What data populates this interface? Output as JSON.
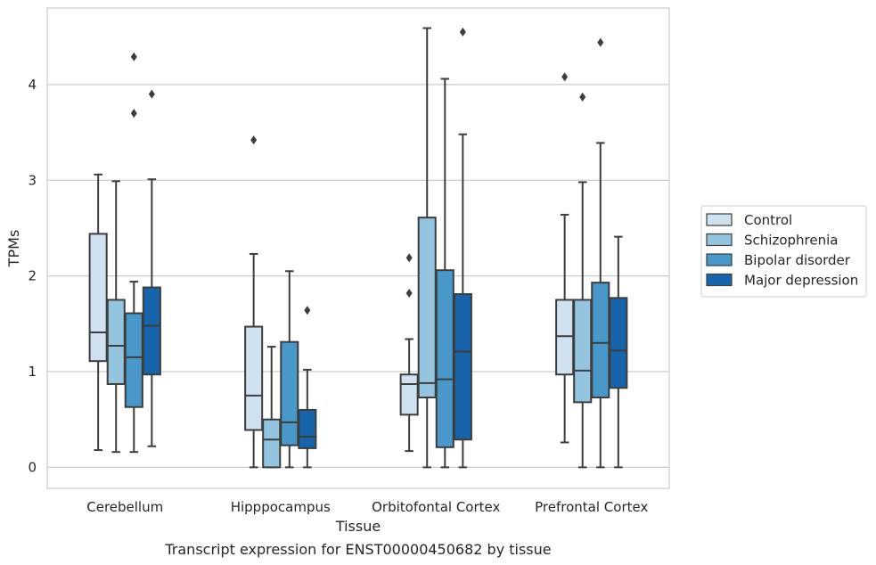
{
  "chart_data": {
    "type": "box",
    "title": "",
    "caption": "Transcript expression for ENST00000450682 by tissue",
    "xlabel": "Tissue",
    "ylabel": "TPMs",
    "ylim": [
      -0.22,
      4.8
    ],
    "yticks": [
      0,
      1,
      2,
      3,
      4
    ],
    "grid": true,
    "legend_position": "right",
    "categories": [
      "Cerebellum",
      "Hipppocampus",
      "Orbitofontal Cortex",
      "Prefrontal Cortex"
    ],
    "series": [
      {
        "name": "Control",
        "color": "#d0e1f2",
        "boxes": [
          {
            "whislo": 0.18,
            "q1": 1.11,
            "med": 1.41,
            "q3": 2.44,
            "whishi": 3.06,
            "fliers": []
          },
          {
            "whislo": 0.0,
            "q1": 0.39,
            "med": 0.75,
            "q3": 1.47,
            "whishi": 2.23,
            "fliers": [
              3.42
            ]
          },
          {
            "whislo": 0.17,
            "q1": 0.55,
            "med": 0.87,
            "q3": 0.97,
            "whishi": 1.34,
            "fliers": [
              1.82,
              2.19
            ]
          },
          {
            "whislo": 0.26,
            "q1": 0.97,
            "med": 1.37,
            "q3": 1.75,
            "whishi": 2.64,
            "fliers": [
              4.08
            ]
          }
        ]
      },
      {
        "name": "Schizophrenia",
        "color": "#94c4df",
        "boxes": [
          {
            "whislo": 0.16,
            "q1": 0.87,
            "med": 1.27,
            "q3": 1.75,
            "whishi": 2.99,
            "fliers": []
          },
          {
            "whislo": 0.0,
            "q1": 0.0,
            "med": 0.29,
            "q3": 0.5,
            "whishi": 1.26,
            "fliers": []
          },
          {
            "whislo": 0.0,
            "q1": 0.73,
            "med": 0.88,
            "q3": 2.61,
            "whishi": 4.59,
            "fliers": []
          },
          {
            "whislo": 0.0,
            "q1": 0.68,
            "med": 1.01,
            "q3": 1.75,
            "whishi": 2.98,
            "fliers": [
              3.87
            ]
          }
        ]
      },
      {
        "name": "Bipolar disorder",
        "color": "#4a98c9",
        "boxes": [
          {
            "whislo": 0.16,
            "q1": 0.63,
            "med": 1.15,
            "q3": 1.61,
            "whishi": 1.94,
            "fliers": [
              3.7,
              4.29
            ]
          },
          {
            "whislo": 0.0,
            "q1": 0.23,
            "med": 0.47,
            "q3": 1.31,
            "whishi": 2.05,
            "fliers": []
          },
          {
            "whislo": 0.0,
            "q1": 0.21,
            "med": 0.92,
            "q3": 2.06,
            "whishi": 4.06,
            "fliers": []
          },
          {
            "whislo": 0.0,
            "q1": 0.73,
            "med": 1.3,
            "q3": 1.93,
            "whishi": 3.39,
            "fliers": [
              4.44
            ]
          }
        ]
      },
      {
        "name": "Major depression",
        "color": "#1764ab",
        "boxes": [
          {
            "whislo": 0.22,
            "q1": 0.97,
            "med": 1.48,
            "q3": 1.88,
            "whishi": 3.01,
            "fliers": [
              3.9
            ]
          },
          {
            "whislo": 0.0,
            "q1": 0.2,
            "med": 0.32,
            "q3": 0.6,
            "whishi": 1.02,
            "fliers": [
              1.64
            ]
          },
          {
            "whislo": 0.0,
            "q1": 0.29,
            "med": 1.21,
            "q3": 1.81,
            "whishi": 3.48,
            "fliers": [
              4.55
            ]
          },
          {
            "whislo": 0.0,
            "q1": 0.83,
            "med": 1.22,
            "q3": 1.77,
            "whishi": 2.41,
            "fliers": []
          }
        ]
      }
    ]
  }
}
